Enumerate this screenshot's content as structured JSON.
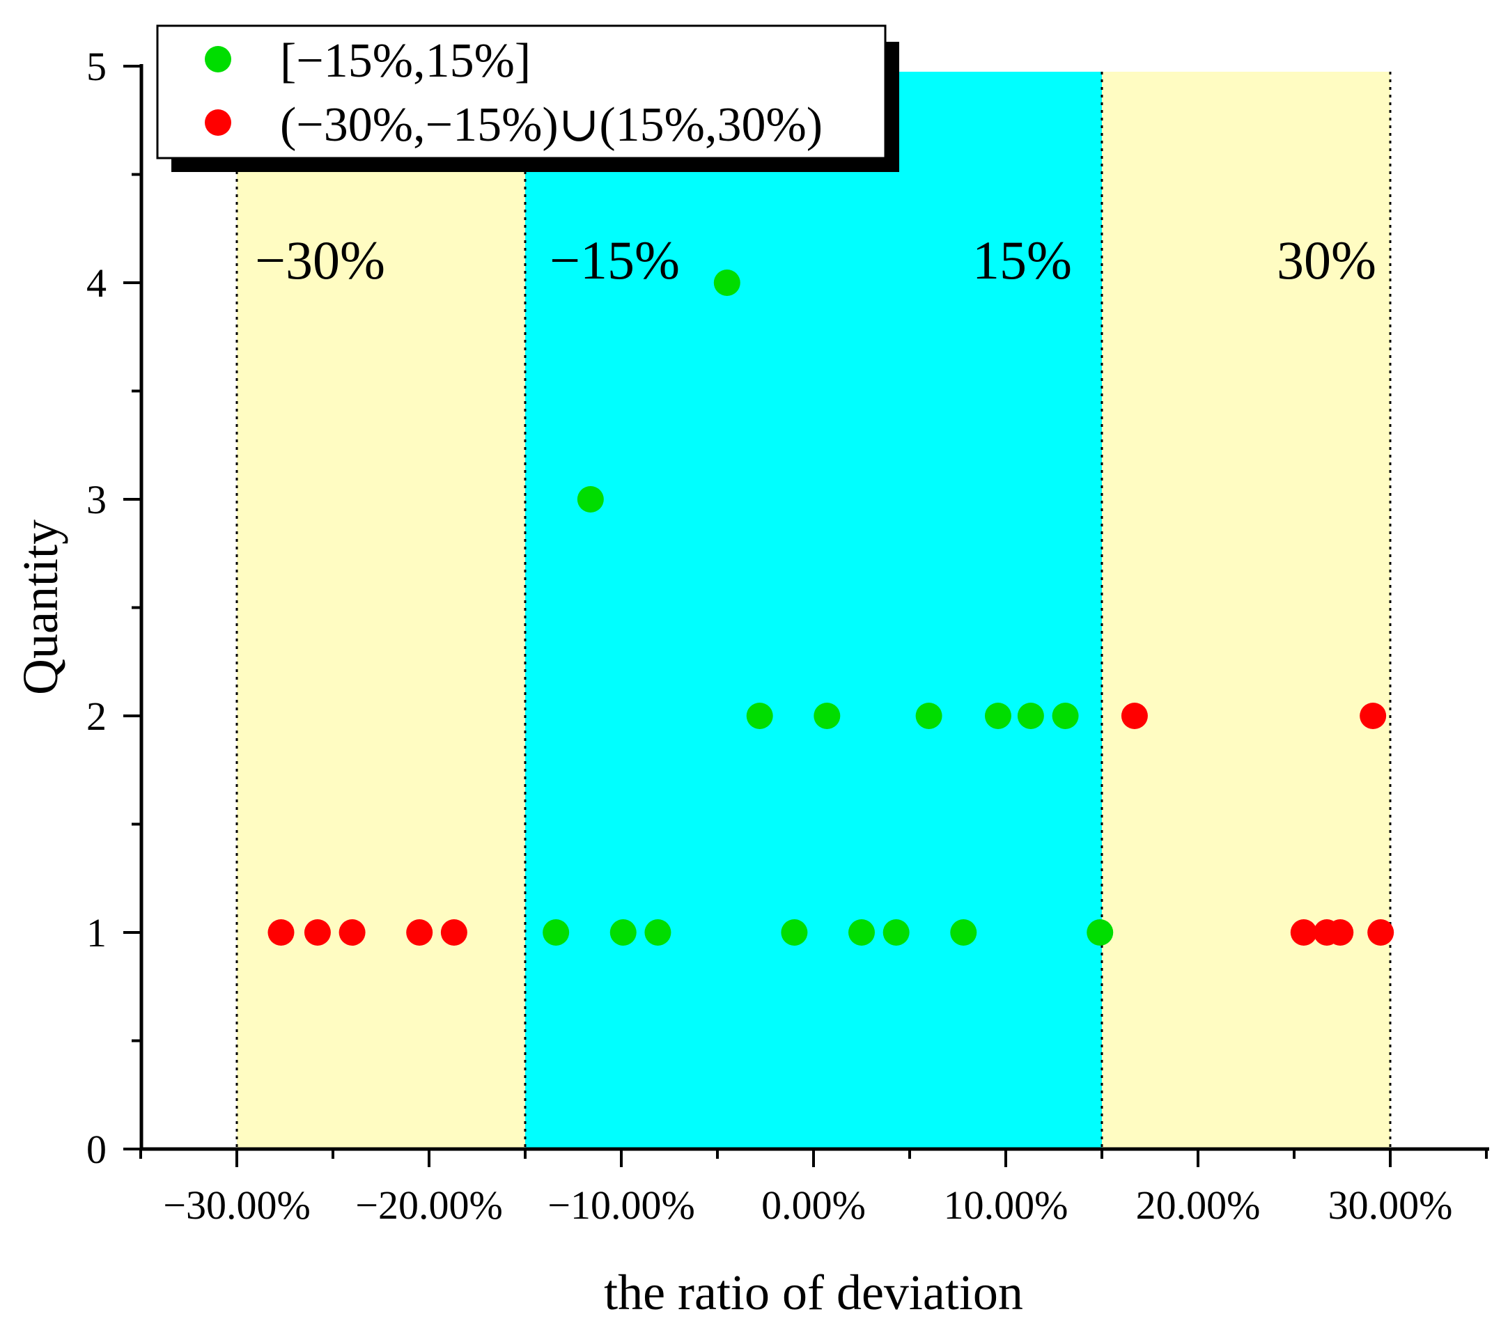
{
  "chart_data": {
    "type": "scatter",
    "xlabel": "the ratio of deviation",
    "ylabel": "Quantity",
    "xlim": [
      -35,
      35
    ],
    "ylim": [
      0,
      5
    ],
    "xticks": [
      -30,
      -20,
      -10,
      0,
      10,
      20,
      30
    ],
    "xtick_labels": [
      "−30.00%",
      "−20.00%",
      "−10.00%",
      "0.00%",
      "10.00%",
      "20.00%",
      "30.00%"
    ],
    "yticks": [
      0,
      1,
      2,
      3,
      4,
      5
    ],
    "ytick_labels": [
      "0",
      "1",
      "2",
      "3",
      "4",
      "5"
    ],
    "zones": [
      {
        "from": -30,
        "to": -15,
        "color": "#fffcc2"
      },
      {
        "from": -15,
        "to": 15,
        "color": "#00ffff"
      },
      {
        "from": 15,
        "to": 30,
        "color": "#fffcc2"
      }
    ],
    "zone_lines": [
      -30,
      -15,
      15,
      30
    ],
    "zone_labels": [
      {
        "text": "−30%",
        "x": -30
      },
      {
        "text": "−15%",
        "x": -15
      },
      {
        "text": "15%",
        "x": 15
      },
      {
        "text": "30%",
        "x": 30
      }
    ],
    "legend_position": "top-left",
    "series": [
      {
        "name": "[−15%,15%]",
        "color": "#00dd00",
        "points": [
          {
            "x": -13.4,
            "y": 1
          },
          {
            "x": -11.6,
            "y": 3
          },
          {
            "x": -9.9,
            "y": 1
          },
          {
            "x": -8.1,
            "y": 1
          },
          {
            "x": -4.5,
            "y": 4
          },
          {
            "x": -2.8,
            "y": 2
          },
          {
            "x": -1.0,
            "y": 1
          },
          {
            "x": 0.7,
            "y": 2
          },
          {
            "x": 2.5,
            "y": 1
          },
          {
            "x": 4.3,
            "y": 1
          },
          {
            "x": 6.0,
            "y": 2
          },
          {
            "x": 7.8,
            "y": 1
          },
          {
            "x": 9.6,
            "y": 2
          },
          {
            "x": 11.3,
            "y": 2
          },
          {
            "x": 13.1,
            "y": 2
          },
          {
            "x": 14.9,
            "y": 1
          }
        ]
      },
      {
        "name": "(−30%,−15%)∪(15%,30%)",
        "color": "#ff0000",
        "points": [
          {
            "x": -27.7,
            "y": 1
          },
          {
            "x": -25.8,
            "y": 1
          },
          {
            "x": -24.0,
            "y": 1
          },
          {
            "x": -20.5,
            "y": 1
          },
          {
            "x": -18.7,
            "y": 1
          },
          {
            "x": 16.7,
            "y": 2
          },
          {
            "x": 25.5,
            "y": 1
          },
          {
            "x": 26.7,
            "y": 1
          },
          {
            "x": 27.4,
            "y": 1
          },
          {
            "x": 29.1,
            "y": 2
          },
          {
            "x": 29.5,
            "y": 1
          }
        ]
      }
    ]
  }
}
